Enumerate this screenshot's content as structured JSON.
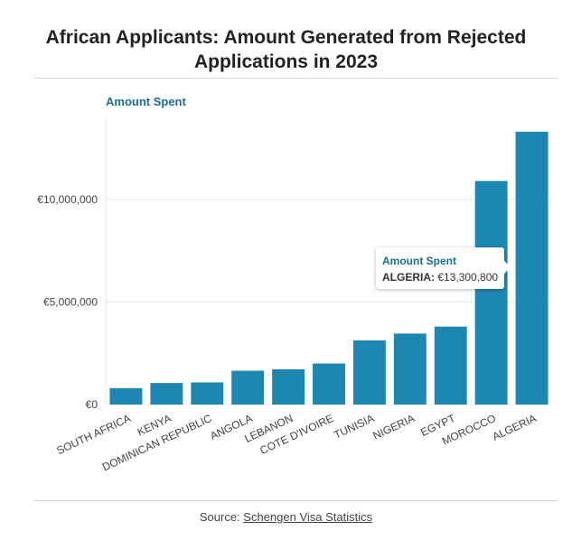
{
  "title": "African Applicants: Amount Generated from Rejected Applications in 2023",
  "source": {
    "prefix": "Source: ",
    "link_text": "Schengen Visa Statistics"
  },
  "tooltip": {
    "title": "Amount Spent",
    "category": "ALGERIA:",
    "value": "€13,300,800"
  },
  "colors": {
    "bar": "#1d87b4",
    "axis_label": "#1a6e93",
    "grid": "#e6e6e6"
  },
  "chart_data": {
    "type": "bar",
    "ylabel": "Amount Spent",
    "categories": [
      "SOUTH AFRICA",
      "KENYA",
      "DOMINICAN REPUBLIC",
      "ANGOLA",
      "LEBANON",
      "COTE D'IVOIRE",
      "TUNISIA",
      "NIGERIA",
      "EGYPT",
      "MOROCCO",
      "ALGERIA"
    ],
    "values": [
      800000,
      1050000,
      1080000,
      1650000,
      1720000,
      2000000,
      3130000,
      3460000,
      3800000,
      10900000,
      13300800
    ],
    "ylim": [
      0,
      14000000
    ],
    "yticks": [
      0,
      5000000,
      10000000
    ],
    "ytick_labels": [
      "€0",
      "€5,000,000",
      "€10,000,000"
    ],
    "grid": true
  }
}
